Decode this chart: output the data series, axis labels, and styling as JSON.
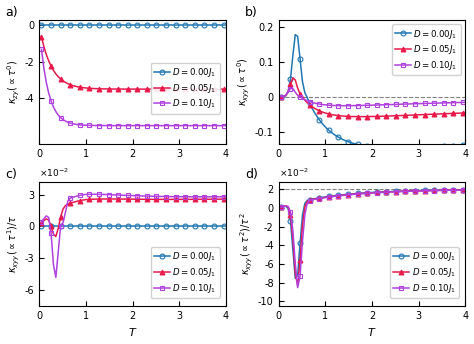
{
  "legend_labels": [
    "$D = 0.00J_1$",
    "$D = 0.05J_1$",
    "$D = 0.10J_1$"
  ],
  "colors_a": [
    "#1f77b4",
    "#e8194a",
    "#b040df"
  ],
  "colors_b": [
    "#1f77b4",
    "#e8194a",
    "#b040df"
  ],
  "colors_c": [
    "#1f77b4",
    "#e8194a",
    "#b040df"
  ],
  "colors_d": [
    "#1f77b4",
    "#e8194a",
    "#b040df"
  ],
  "T_min": 0.05,
  "T_max": 4.0,
  "nT": 78
}
